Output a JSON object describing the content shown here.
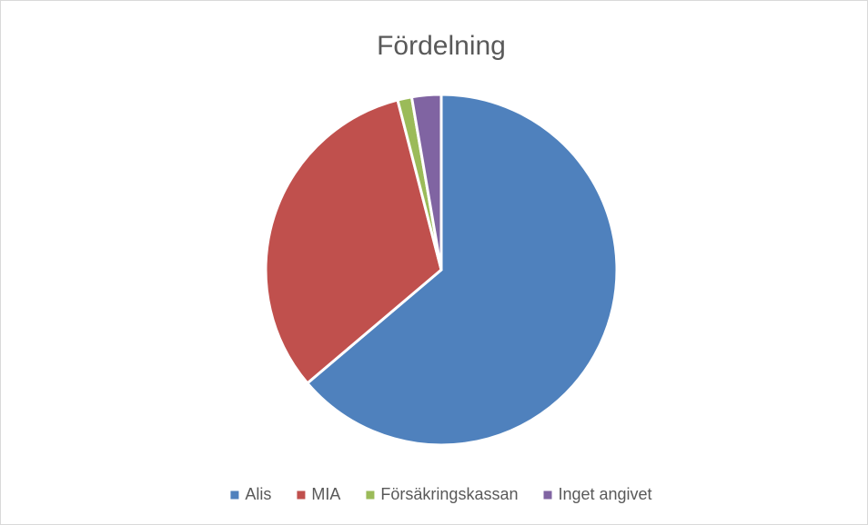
{
  "chart_data": {
    "type": "pie",
    "title": "Fördelning",
    "categories": [
      "Alis",
      "MIA",
      "Försäkringskassan",
      "Inget angivet"
    ],
    "values": [
      63.8,
      32.2,
      1.3,
      2.7
    ],
    "colors": [
      "#4f81bd",
      "#c0504d",
      "#9bbb59",
      "#8064a2"
    ],
    "legend": "bottom"
  }
}
